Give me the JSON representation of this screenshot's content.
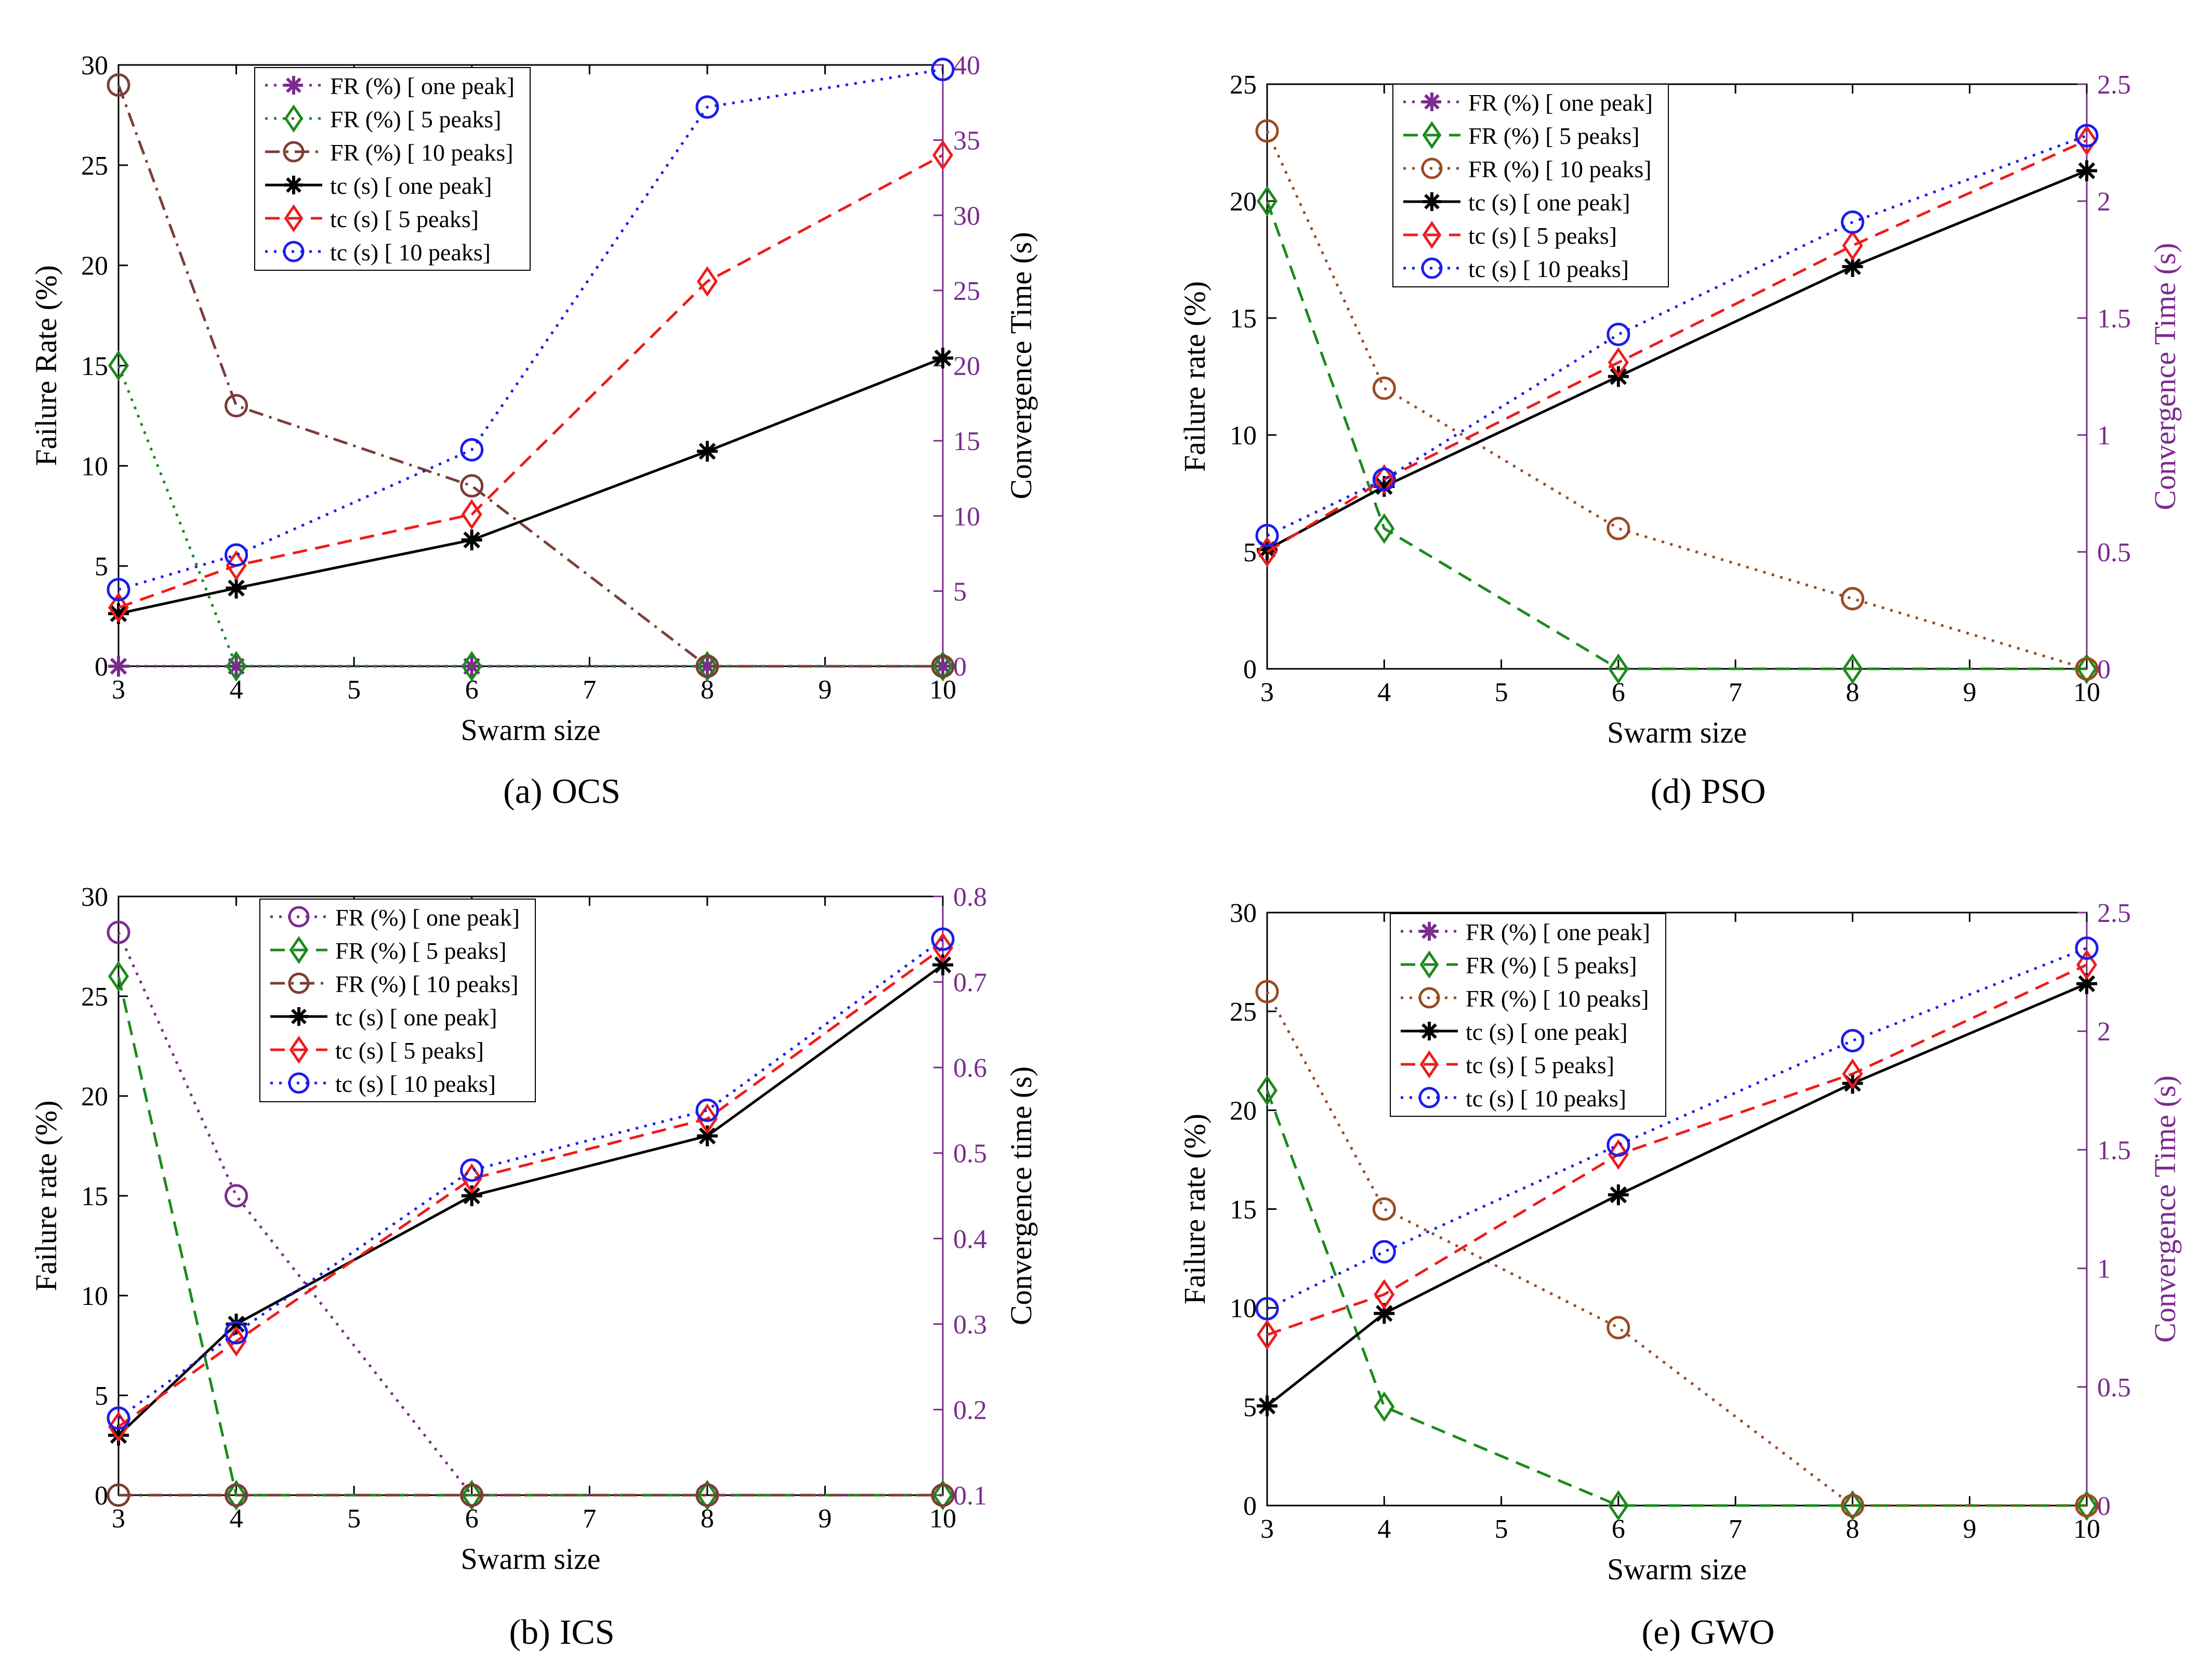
{
  "chart_data": [
    {
      "id": "a",
      "type": "line",
      "caption_letter": "(a)",
      "caption_text": "OCS",
      "xlabel": "Swarm size",
      "ylabel": "Failure Rate (%)",
      "y2label": "Convergence Time (s)",
      "x": [
        3,
        4,
        6,
        8,
        10
      ],
      "xlim": [
        3,
        10
      ],
      "xticks": [
        3,
        4,
        5,
        6,
        7,
        8,
        9,
        10
      ],
      "ylim": [
        0,
        30
      ],
      "yticks": [
        0,
        5,
        10,
        15,
        20,
        25,
        30
      ],
      "y2lim": [
        0,
        40
      ],
      "y2ticks": [
        0,
        5,
        10,
        15,
        20,
        25,
        30,
        35,
        40
      ],
      "y2_color": "#7b2c8f",
      "y2label_color": "#000000",
      "legend_position": "top-center",
      "series": [
        {
          "name": "FR (%) [ one peak]",
          "axis": "left",
          "values": [
            0,
            0,
            0,
            0,
            0
          ],
          "color": "#7b2c8f",
          "marker": "star",
          "dash": "dot"
        },
        {
          "name": "FR (%) [ 5 peaks]",
          "axis": "left",
          "values": [
            15,
            0,
            0,
            0,
            0
          ],
          "color": "#1b8a1b",
          "marker": "diamond",
          "dash": "dot"
        },
        {
          "name": "FR (%) [ 10 peaks]",
          "axis": "left",
          "values": [
            29,
            13,
            9,
            0,
            0
          ],
          "color": "#7a3e36",
          "marker": "circle",
          "dash": "dashdot"
        },
        {
          "name": "tc (s) [ one peak]",
          "axis": "right",
          "values": [
            3.5,
            5.2,
            8.4,
            14.3,
            20.5
          ],
          "color": "#000000",
          "marker": "star",
          "dash": "solid"
        },
        {
          "name": "tc (s) [ 5 peaks]",
          "axis": "right",
          "values": [
            3.9,
            6.7,
            10.1,
            25.6,
            34
          ],
          "color": "#ee1c1c",
          "marker": "diamond",
          "dash": "dash"
        },
        {
          "name": "tc (s) [ 10 peaks]",
          "axis": "right",
          "values": [
            5.1,
            7.4,
            14.4,
            37.2,
            39.7
          ],
          "color": "#1c1cee",
          "marker": "circle",
          "dash": "dot"
        }
      ]
    },
    {
      "id": "d",
      "type": "line",
      "caption_letter": "(d)",
      "caption_text": "PSO",
      "xlabel": "Swarm size",
      "ylabel": "Failure rate (%)",
      "y2label": "Convergence Time (s)",
      "x": [
        3,
        4,
        6,
        8,
        10
      ],
      "xlim": [
        3,
        10
      ],
      "xticks": [
        3,
        4,
        5,
        6,
        7,
        8,
        9,
        10
      ],
      "ylim": [
        0,
        25
      ],
      "yticks": [
        0,
        5,
        10,
        15,
        20,
        25
      ],
      "y2lim": [
        0,
        2.5
      ],
      "y2ticks": [
        0,
        0.5,
        1,
        1.5,
        2,
        2.5
      ],
      "y2_color": "#7b2c8f",
      "y2label_color": "#7b2c8f",
      "legend_position": "top-left",
      "series": [
        {
          "name": "FR (%) [ one peak]",
          "axis": "left",
          "values": [
            null,
            null,
            null,
            null,
            null
          ],
          "color": "#7b2c8f",
          "marker": "star",
          "dash": "dot"
        },
        {
          "name": "FR (%) [ 5 peaks]",
          "axis": "left",
          "values": [
            20,
            6,
            0,
            0,
            0
          ],
          "color": "#1b8a1b",
          "marker": "diamond",
          "dash": "dash"
        },
        {
          "name": "FR (%) [ 10 peaks]",
          "axis": "left",
          "values": [
            23,
            12,
            6,
            3,
            0
          ],
          "color": "#9a4a1e",
          "marker": "circle",
          "dash": "dot"
        },
        {
          "name": "tc (s) [ one peak]",
          "axis": "right",
          "values": [
            0.51,
            0.78,
            1.25,
            1.72,
            2.13
          ],
          "color": "#000000",
          "marker": "star",
          "dash": "solid"
        },
        {
          "name": "tc (s) [ 5 peaks]",
          "axis": "right",
          "values": [
            0.5,
            0.81,
            1.31,
            1.81,
            2.26
          ],
          "color": "#ee1c1c",
          "marker": "diamond",
          "dash": "dash"
        },
        {
          "name": "tc (s) [ 10 peaks]",
          "axis": "right",
          "values": [
            0.57,
            0.81,
            1.43,
            1.91,
            2.28
          ],
          "color": "#1c1cee",
          "marker": "circle",
          "dash": "dot"
        }
      ]
    },
    {
      "id": "b",
      "type": "line",
      "caption_letter": "(b)",
      "caption_text": "ICS",
      "xlabel": "Swarm size",
      "ylabel": "Failure rate (%)",
      "y2label": "Convergence time (s)",
      "x": [
        3,
        4,
        6,
        8,
        10
      ],
      "xlim": [
        3,
        10
      ],
      "xticks": [
        3,
        4,
        5,
        6,
        7,
        8,
        9,
        10
      ],
      "ylim": [
        0,
        30
      ],
      "yticks": [
        0,
        5,
        10,
        15,
        20,
        25,
        30
      ],
      "y2lim": [
        0.1,
        0.8
      ],
      "y2ticks": [
        0.1,
        0.2,
        0.3,
        0.4,
        0.5,
        0.6,
        0.7,
        0.8
      ],
      "y2_color": "#7b2c8f",
      "y2label_color": "#000000",
      "legend_position": "top-center",
      "series": [
        {
          "name": "FR (%) [ one peak]",
          "axis": "left",
          "values": [
            28.2,
            15,
            0,
            0,
            0
          ],
          "color": "#7b2c8f",
          "marker": "circle",
          "dash": "dot"
        },
        {
          "name": "FR (%) [ 5 peaks]",
          "axis": "left",
          "values": [
            26,
            0,
            0,
            0,
            0
          ],
          "color": "#1b8a1b",
          "marker": "diamond",
          "dash": "dash"
        },
        {
          "name": "FR (%) [ 10 peaks]",
          "axis": "left",
          "values": [
            0,
            0,
            0,
            0,
            0
          ],
          "color": "#7a3e36",
          "marker": "circle",
          "dash": "dashdot"
        },
        {
          "name": "tc (s) [ one peak]",
          "axis": "right",
          "values": [
            0.17,
            0.3,
            0.45,
            0.52,
            0.72
          ],
          "color": "#000000",
          "marker": "star",
          "dash": "solid"
        },
        {
          "name": "tc (s) [ 5 peaks]",
          "axis": "right",
          "values": [
            0.18,
            0.28,
            0.47,
            0.54,
            0.74
          ],
          "color": "#ee1c1c",
          "marker": "diamond",
          "dash": "dash"
        },
        {
          "name": "tc (s) [ 10 peaks]",
          "axis": "right",
          "values": [
            0.19,
            0.29,
            0.48,
            0.55,
            0.75
          ],
          "color": "#1c1cee",
          "marker": "circle",
          "dash": "dot"
        }
      ]
    },
    {
      "id": "e",
      "type": "line",
      "caption_letter": "(e)",
      "caption_text": "GWO",
      "xlabel": "Swarm size",
      "ylabel": "Failure rate (%)",
      "y2label": "Convergence Time (s)",
      "x": [
        3,
        4,
        6,
        8,
        10
      ],
      "xlim": [
        3,
        10
      ],
      "xticks": [
        3,
        4,
        5,
        6,
        7,
        8,
        9,
        10
      ],
      "ylim": [
        0,
        30
      ],
      "yticks": [
        0,
        5,
        10,
        15,
        20,
        25,
        30
      ],
      "y2lim": [
        0,
        2.5
      ],
      "y2ticks": [
        0,
        0.5,
        1,
        1.5,
        2,
        2.5
      ],
      "y2_color": "#7b2c8f",
      "y2label_color": "#7b2c8f",
      "legend_position": "top-left",
      "series": [
        {
          "name": "FR (%) [ one peak]",
          "axis": "left",
          "values": [
            null,
            null,
            null,
            null,
            null
          ],
          "color": "#7b2c8f",
          "marker": "star",
          "dash": "dot"
        },
        {
          "name": "FR (%) [ 5 peaks]",
          "axis": "left",
          "values": [
            21,
            5,
            0,
            0,
            0
          ],
          "color": "#1b8a1b",
          "marker": "diamond",
          "dash": "dash"
        },
        {
          "name": "FR (%) [ 10 peaks]",
          "axis": "left",
          "values": [
            26,
            15,
            9,
            0,
            0
          ],
          "color": "#9a4a1e",
          "marker": "circle",
          "dash": "dot"
        },
        {
          "name": "tc (s) [ one peak]",
          "axis": "right",
          "values": [
            0.42,
            0.81,
            1.31,
            1.78,
            2.2
          ],
          "color": "#000000",
          "marker": "star",
          "dash": "solid"
        },
        {
          "name": "tc (s) [ 5 peaks]",
          "axis": "right",
          "values": [
            0.72,
            0.89,
            1.48,
            1.82,
            2.28
          ],
          "color": "#ee1c1c",
          "marker": "diamond",
          "dash": "dash"
        },
        {
          "name": "tc (s) [ 10 peaks]",
          "axis": "right",
          "values": [
            0.83,
            1.07,
            1.52,
            1.96,
            2.35
          ],
          "color": "#1c1cee",
          "marker": "circle",
          "dash": "dot"
        }
      ]
    }
  ]
}
